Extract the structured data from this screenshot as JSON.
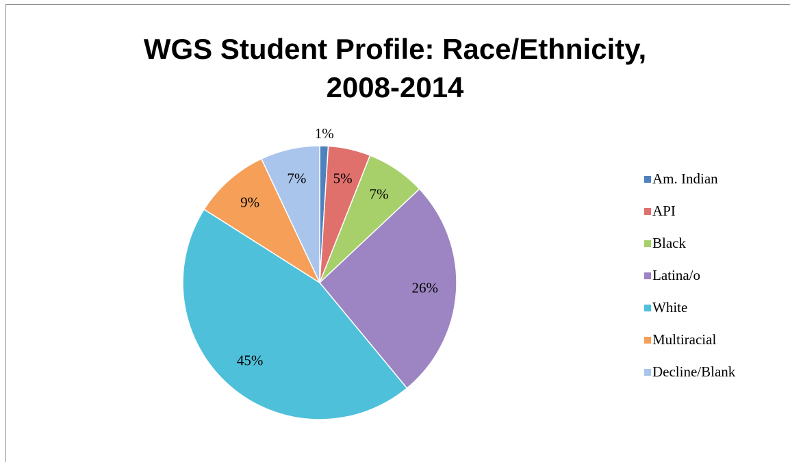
{
  "chart_data": {
    "type": "pie",
    "title": "WGS Student Profile: Race/Ethnicity, 2008-2014",
    "categories": [
      "Am. Indian",
      "API",
      "Black",
      "Latina/o",
      "White",
      "Multiracial",
      "Decline/Blank"
    ],
    "values": [
      1,
      5,
      7,
      26,
      45,
      9,
      7
    ],
    "value_labels": [
      "1%",
      "5%",
      "7%",
      "26%",
      "45%",
      "9%",
      "7%"
    ],
    "colors": [
      "#4f81bd",
      "#e0706c",
      "#a7cf6a",
      "#9c85c2",
      "#4fc0da",
      "#f59f58",
      "#a9c5ec"
    ],
    "legend": "right"
  }
}
